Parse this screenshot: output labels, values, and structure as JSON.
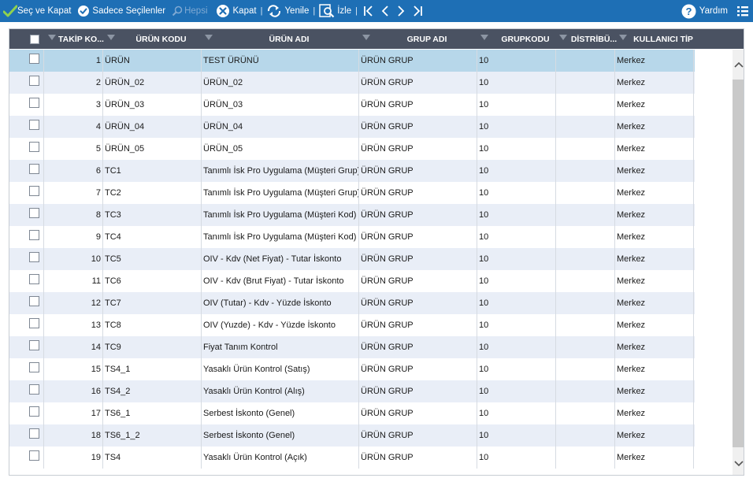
{
  "toolbar": {
    "sec_ve_kapat": "Seç ve Kapat",
    "sadece_secilenler": "Sadece Seçilenler",
    "hepsi": "Hepsi",
    "kapat": "Kapat",
    "yenile": "Yenile",
    "izle": "İzle",
    "yardim": "Yardım",
    "separator": "|"
  },
  "columns": [
    "TAKİP KO...",
    "ÜRÜN KODU",
    "ÜRÜN ADI",
    "GRUP ADI",
    "GRUPKODU",
    "DİSTRİBÜ...",
    "KULLANICI TİP"
  ],
  "rows": [
    {
      "takip": "1",
      "kod": "ÜRÜN",
      "adi": "TEST ÜRÜNÜ",
      "grup": "ÜRÜN GRUP",
      "grupkodu": "10",
      "distributor": "",
      "tip": "Merkez"
    },
    {
      "takip": "2",
      "kod": "ÜRÜN_02",
      "adi": "ÜRÜN_02",
      "grup": "ÜRÜN GRUP",
      "grupkodu": "10",
      "distributor": "",
      "tip": "Merkez"
    },
    {
      "takip": "3",
      "kod": "ÜRÜN_03",
      "adi": "ÜRÜN_03",
      "grup": "ÜRÜN GRUP",
      "grupkodu": "10",
      "distributor": "",
      "tip": "Merkez"
    },
    {
      "takip": "4",
      "kod": "ÜRÜN_04",
      "adi": "ÜRÜN_04",
      "grup": "ÜRÜN GRUP",
      "grupkodu": "10",
      "distributor": "",
      "tip": "Merkez"
    },
    {
      "takip": "5",
      "kod": "ÜRÜN_05",
      "adi": "ÜRÜN_05",
      "grup": "ÜRÜN GRUP",
      "grupkodu": "10",
      "distributor": "",
      "tip": "Merkez"
    },
    {
      "takip": "6",
      "kod": "TC1",
      "adi": "Tanımlı İsk Pro Uygulama (Müşteri Grup)",
      "grup": "ÜRÜN GRUP",
      "grupkodu": "10",
      "distributor": "",
      "tip": "Merkez"
    },
    {
      "takip": "7",
      "kod": "TC2",
      "adi": "Tanımlı İsk Pro Uygulama (Müşteri Grup)",
      "grup": "ÜRÜN GRUP",
      "grupkodu": "10",
      "distributor": "",
      "tip": "Merkez"
    },
    {
      "takip": "8",
      "kod": "TC3",
      "adi": "Tanımlı İsk Pro Uygulama (Müşteri Kod)",
      "grup": "ÜRÜN GRUP",
      "grupkodu": "10",
      "distributor": "",
      "tip": "Merkez"
    },
    {
      "takip": "9",
      "kod": "TC4",
      "adi": "Tanımlı İsk Pro Uygulama (Müşteri Kod)",
      "grup": "ÜRÜN GRUP",
      "grupkodu": "10",
      "distributor": "",
      "tip": "Merkez"
    },
    {
      "takip": "10",
      "kod": "TC5",
      "adi": "OIV - Kdv (Net Fiyat) - Tutar İskonto",
      "grup": "ÜRÜN GRUP",
      "grupkodu": "10",
      "distributor": "",
      "tip": "Merkez"
    },
    {
      "takip": "11",
      "kod": "TC6",
      "adi": "OIV - Kdv (Brut Fiyat) - Tutar İskonto",
      "grup": "ÜRÜN GRUP",
      "grupkodu": "10",
      "distributor": "",
      "tip": "Merkez"
    },
    {
      "takip": "12",
      "kod": "TC7",
      "adi": "OIV (Tutar) - Kdv - Yüzde İskonto",
      "grup": "ÜRÜN GRUP",
      "grupkodu": "10",
      "distributor": "",
      "tip": "Merkez"
    },
    {
      "takip": "13",
      "kod": "TC8",
      "adi": "OIV (Yuzde) - Kdv - Yüzde İskonto",
      "grup": "ÜRÜN GRUP",
      "grupkodu": "10",
      "distributor": "",
      "tip": "Merkez"
    },
    {
      "takip": "14",
      "kod": "TC9",
      "adi": "Fiyat Tanım Kontrol",
      "grup": "ÜRÜN GRUP",
      "grupkodu": "10",
      "distributor": "",
      "tip": "Merkez"
    },
    {
      "takip": "15",
      "kod": "TS4_1",
      "adi": "Yasaklı Ürün Kontrol (Satış)",
      "grup": "ÜRÜN GRUP",
      "grupkodu": "10",
      "distributor": "",
      "tip": "Merkez"
    },
    {
      "takip": "16",
      "kod": "TS4_2",
      "adi": "Yasaklı Ürün Kontrol (Alış)",
      "grup": "ÜRÜN GRUP",
      "grupkodu": "10",
      "distributor": "",
      "tip": "Merkez"
    },
    {
      "takip": "17",
      "kod": "TS6_1",
      "adi": "Serbest İskonto (Genel)",
      "grup": "ÜRÜN GRUP",
      "grupkodu": "10",
      "distributor": "",
      "tip": "Merkez"
    },
    {
      "takip": "18",
      "kod": "TS6_1_2",
      "adi": "Serbest İskonto (Genel)",
      "grup": "ÜRÜN GRUP",
      "grupkodu": "10",
      "distributor": "",
      "tip": "Merkez"
    },
    {
      "takip": "19",
      "kod": "TS4",
      "adi": "Yasaklı Ürün Kontrol (Açık)",
      "grup": "ÜRÜN GRUP",
      "grupkodu": "10",
      "distributor": "",
      "tip": "Merkez"
    }
  ],
  "selected_row_index": 0,
  "colors": {
    "toolbar_bg": "#1e6fb5",
    "header_bg": "#4a5262",
    "row_alt": "#e9eef7",
    "row_selected": "#b7d7ea"
  },
  "icons": {
    "sec_ve_kapat": "check-mark-icon",
    "sadece_secilenler": "check-circle-icon",
    "hepsi": "search-icon",
    "kapat": "close-circle-icon",
    "yenile": "refresh-icon",
    "izle": "preview-icon",
    "first": "first-page-icon",
    "prev": "previous-icon",
    "next": "next-icon",
    "last": "last-page-icon",
    "yardim": "help-icon",
    "menu": "list-menu-icon"
  }
}
